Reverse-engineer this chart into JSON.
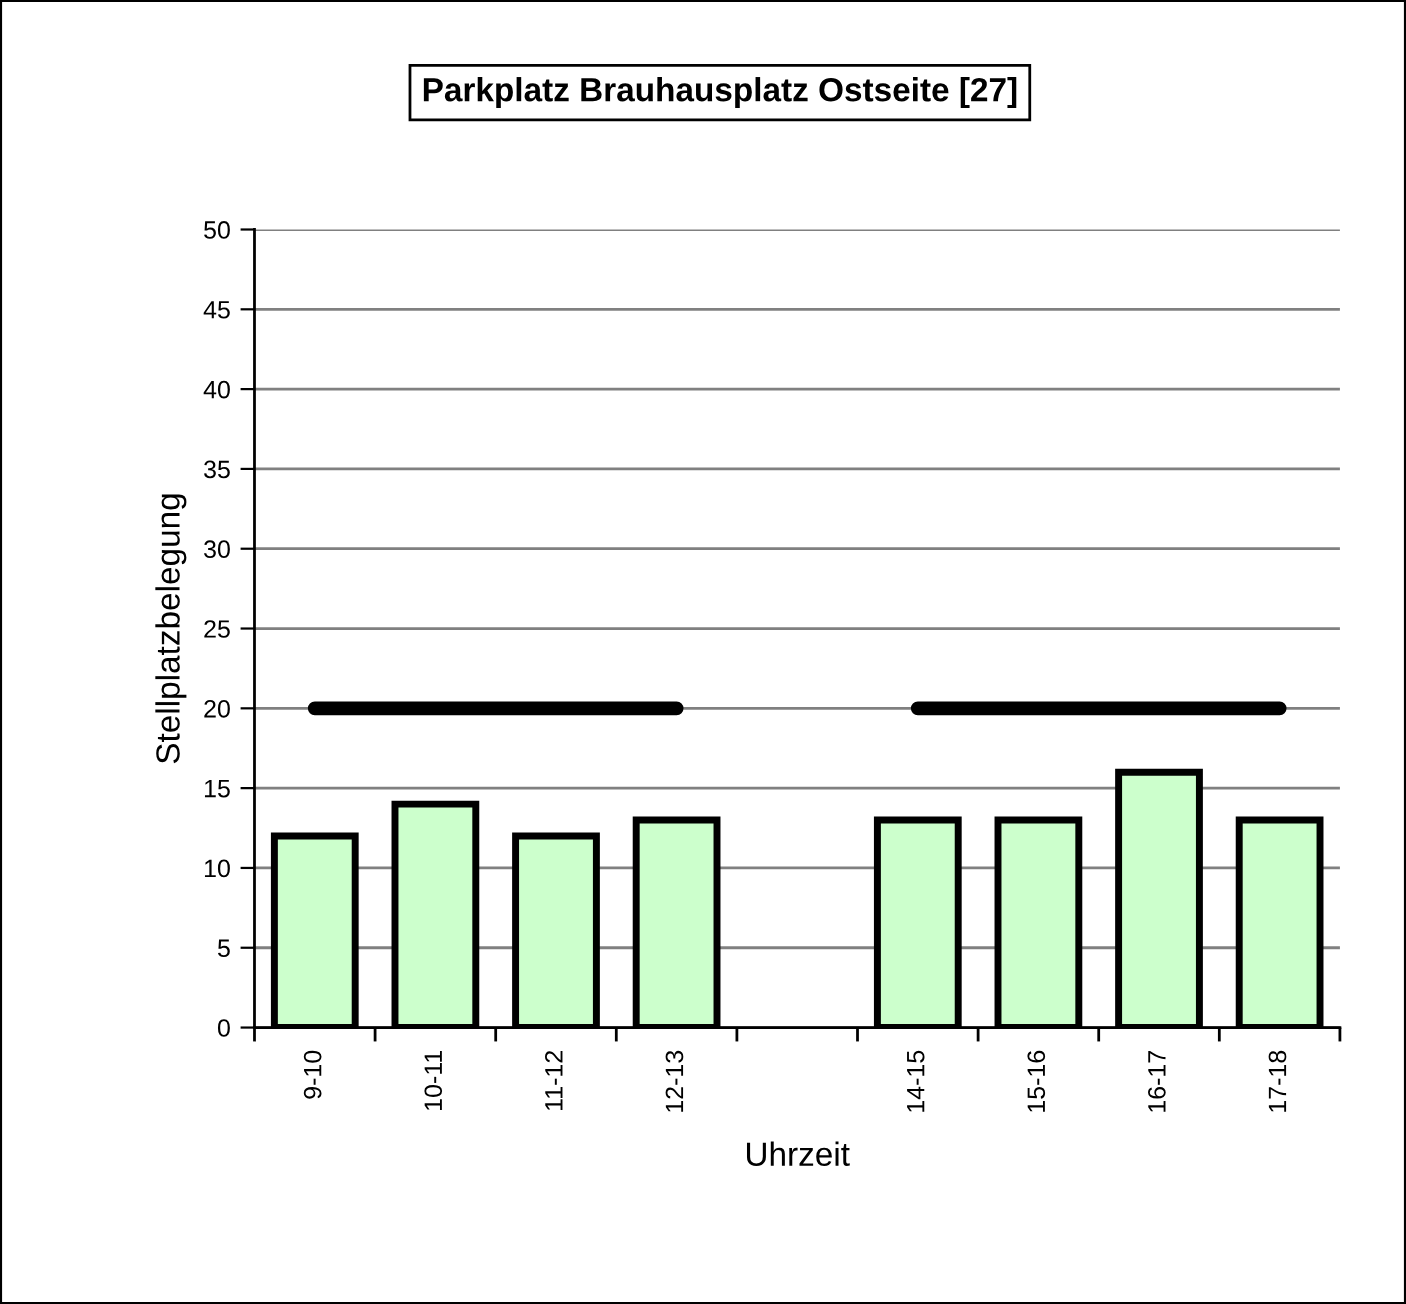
{
  "chart_data": {
    "type": "bar",
    "title": "Parkplatz Brauhausplatz Ostseite [27]",
    "xlabel": "Uhrzeit",
    "ylabel": "Stellplatzbelegung",
    "categories": [
      "9-10",
      "10-11",
      "11-12",
      "12-13",
      null,
      "14-15",
      "15-16",
      "16-17",
      "17-18"
    ],
    "series": [
      {
        "color": "#ccffcc",
        "values": [
          12,
          14,
          12,
          13,
          null,
          13,
          13,
          16,
          13
        ]
      },
      {
        "type": "line",
        "color": "#000000",
        "values": [
          20,
          20,
          20,
          20,
          null,
          20,
          20,
          20,
          20
        ]
      }
    ],
    "ylim": [
      0,
      50
    ],
    "yticks": [
      0,
      5,
      10,
      15,
      20,
      25,
      30,
      35,
      40,
      45,
      50
    ],
    "grid": "y"
  }
}
